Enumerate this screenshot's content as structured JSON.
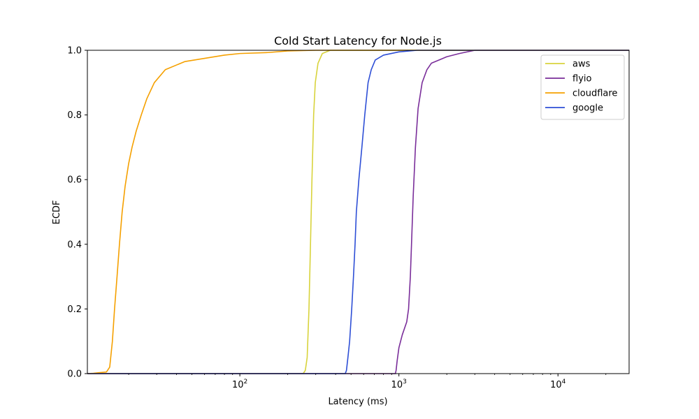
{
  "chart_data": {
    "type": "line",
    "title": "Cold Start Latency for Node.js",
    "xlabel": "Latency (ms)",
    "ylabel": "ECDF",
    "xscale": "log",
    "xlim": [
      11,
      28000
    ],
    "ylim": [
      0.0,
      1.0
    ],
    "x_major_ticks": [
      {
        "value": 100,
        "base": "10",
        "exp": "2"
      },
      {
        "value": 1000,
        "base": "10",
        "exp": "3"
      },
      {
        "value": 10000,
        "base": "10",
        "exp": "4"
      }
    ],
    "y_ticks": [
      "0.0",
      "0.2",
      "0.4",
      "0.6",
      "0.8",
      "1.0"
    ],
    "grid": false,
    "legend_position": "top-right",
    "series": [
      {
        "name": "aws",
        "color": "#d8d33c",
        "points": [
          [
            11,
            0
          ],
          [
            250,
            0
          ],
          [
            258,
            0.01
          ],
          [
            265,
            0.05
          ],
          [
            272,
            0.2
          ],
          [
            278,
            0.4
          ],
          [
            284,
            0.6
          ],
          [
            291,
            0.8
          ],
          [
            298,
            0.9
          ],
          [
            310,
            0.96
          ],
          [
            330,
            0.99
          ],
          [
            370,
            1.0
          ],
          [
            28000,
            1.0
          ]
        ]
      },
      {
        "name": "flyio",
        "color": "#7a2e9a",
        "points": [
          [
            11,
            0
          ],
          [
            950,
            0
          ],
          [
            960,
            0.01
          ],
          [
            975,
            0.04
          ],
          [
            1000,
            0.08
          ],
          [
            1050,
            0.12
          ],
          [
            1120,
            0.16
          ],
          [
            1150,
            0.2
          ],
          [
            1180,
            0.3
          ],
          [
            1200,
            0.4
          ],
          [
            1230,
            0.55
          ],
          [
            1270,
            0.7
          ],
          [
            1320,
            0.82
          ],
          [
            1400,
            0.9
          ],
          [
            1500,
            0.94
          ],
          [
            1600,
            0.96
          ],
          [
            2000,
            0.98
          ],
          [
            2400,
            0.99
          ],
          [
            3000,
            1.0
          ],
          [
            28000,
            1.0
          ]
        ]
      },
      {
        "name": "cloudflare",
        "color": "#f5a000",
        "points": [
          [
            11,
            0
          ],
          [
            12,
            0.001
          ],
          [
            13,
            0.003
          ],
          [
            14.5,
            0.005
          ],
          [
            15.2,
            0.02
          ],
          [
            15.8,
            0.1
          ],
          [
            16.3,
            0.2
          ],
          [
            16.9,
            0.3
          ],
          [
            17.5,
            0.4
          ],
          [
            18.2,
            0.5
          ],
          [
            19.0,
            0.58
          ],
          [
            20,
            0.65
          ],
          [
            21,
            0.7
          ],
          [
            22.3,
            0.75
          ],
          [
            24,
            0.8
          ],
          [
            26,
            0.85
          ],
          [
            29,
            0.9
          ],
          [
            34,
            0.94
          ],
          [
            45,
            0.965
          ],
          [
            60,
            0.975
          ],
          [
            80,
            0.985
          ],
          [
            100,
            0.99
          ],
          [
            150,
            0.993
          ],
          [
            200,
            0.998
          ],
          [
            300,
            1.0
          ],
          [
            28000,
            1.0
          ]
        ]
      },
      {
        "name": "google",
        "color": "#2e4fd6",
        "points": [
          [
            11,
            0
          ],
          [
            460,
            0
          ],
          [
            468,
            0.01
          ],
          [
            478,
            0.05
          ],
          [
            490,
            0.1
          ],
          [
            505,
            0.2
          ],
          [
            518,
            0.3
          ],
          [
            530,
            0.4
          ],
          [
            540,
            0.5
          ],
          [
            560,
            0.6
          ],
          [
            585,
            0.7
          ],
          [
            610,
            0.8
          ],
          [
            640,
            0.9
          ],
          [
            670,
            0.94
          ],
          [
            710,
            0.97
          ],
          [
            800,
            0.985
          ],
          [
            1000,
            0.995
          ],
          [
            1300,
            1.0
          ],
          [
            28000,
            1.0
          ]
        ]
      }
    ]
  }
}
